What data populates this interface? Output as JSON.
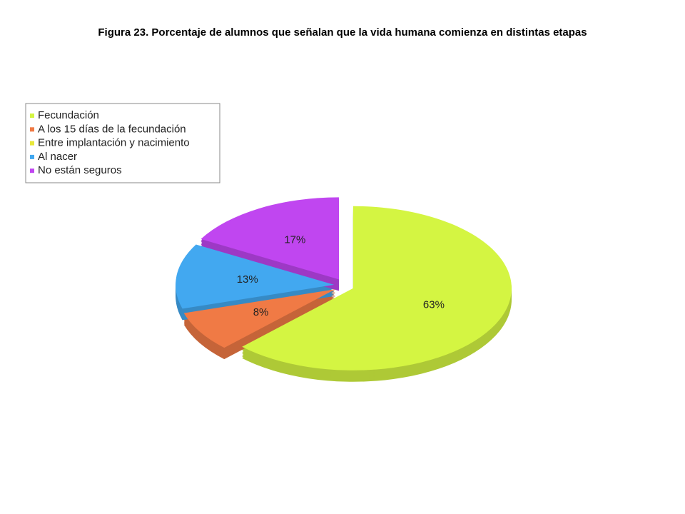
{
  "chart_data": {
    "type": "pie",
    "title": "Figura 23.  Porcentaje de alumnos que señalan que la vida humana comienza en distintas etapas",
    "categories": [
      "Fecundación",
      "A los 15 días de la fecundación",
      "Entre implantación y nacimiento",
      "Al nacer",
      "No están seguros"
    ],
    "values": [
      63,
      8,
      0,
      13,
      17
    ],
    "value_labels": [
      "63%",
      "8%",
      null,
      "13%",
      "17%"
    ],
    "colors": [
      "#d4f542",
      "#f07a45",
      "#e8e83a",
      "#42a8f0",
      "#c046f0"
    ],
    "legend": "top-left"
  }
}
